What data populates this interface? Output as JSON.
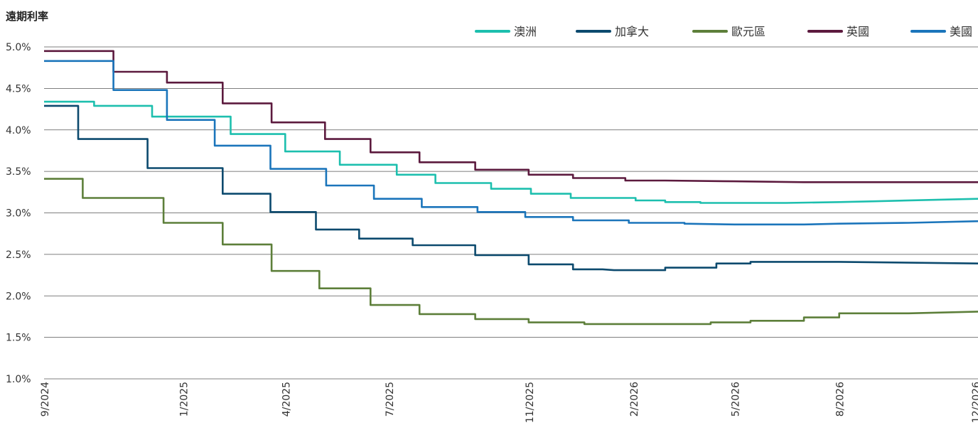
{
  "chart_data": {
    "type": "line",
    "ylabel": "遠期利率",
    "ylim": [
      1.0,
      5.0
    ],
    "yticks": [
      "5.0%",
      "4.5%",
      "4.0%",
      "3.5%",
      "3.0%",
      "2.5%",
      "2.0%",
      "1.5%",
      "1.0%"
    ],
    "xlim": [
      "2024-09",
      "2026-12"
    ],
    "xticks": [
      "9/2024",
      "1/2025",
      "4/2025",
      "7/2025",
      "11/2025",
      "2/2026",
      "5/2026",
      "8/2026",
      "12/2026"
    ],
    "grid": "horizontal",
    "legend_position": "top",
    "series": [
      {
        "name": "澳洲",
        "color": "#1dbfae",
        "points": [
          [
            "2024-09",
            4.34
          ],
          [
            "2024-10-15",
            4.34
          ],
          [
            "2024-10-15",
            4.29
          ],
          [
            "2024-12-05",
            4.29
          ],
          [
            "2024-12-05",
            4.16
          ],
          [
            "2025-02-12",
            4.16
          ],
          [
            "2025-02-12",
            3.95
          ],
          [
            "2025-04-01",
            3.95
          ],
          [
            "2025-04-01",
            3.74
          ],
          [
            "2025-05-19",
            3.74
          ],
          [
            "2025-05-19",
            3.58
          ],
          [
            "2025-07-08",
            3.58
          ],
          [
            "2025-07-08",
            3.46
          ],
          [
            "2025-08-11",
            3.46
          ],
          [
            "2025-08-11",
            3.36
          ],
          [
            "2025-09-29",
            3.36
          ],
          [
            "2025-09-29",
            3.29
          ],
          [
            "2025-11-03",
            3.29
          ],
          [
            "2025-11-03",
            3.23
          ],
          [
            "2025-12-08",
            3.23
          ],
          [
            "2025-12-08",
            3.18
          ],
          [
            "2026-02-03",
            3.18
          ],
          [
            "2026-02-03",
            3.15
          ],
          [
            "2026-03-01",
            3.15
          ],
          [
            "2026-03-01",
            3.13
          ],
          [
            "2026-04-01",
            3.13
          ],
          [
            "2026-04-01",
            3.12
          ],
          [
            "2026-06-15",
            3.12
          ],
          [
            "2026-08-01",
            3.13
          ],
          [
            "2026-09-01",
            3.14
          ],
          [
            "2026-11-01",
            3.16
          ],
          [
            "2026-12",
            3.17
          ]
        ]
      },
      {
        "name": "加拿大",
        "color": "#0c4a6e",
        "points": [
          [
            "2024-09",
            4.29
          ],
          [
            "2024-10-01",
            4.29
          ],
          [
            "2024-10-01",
            3.89
          ],
          [
            "2024-12-01",
            3.89
          ],
          [
            "2024-12-01",
            3.54
          ],
          [
            "2025-02-05",
            3.54
          ],
          [
            "2025-02-05",
            3.23
          ],
          [
            "2025-03-19",
            3.23
          ],
          [
            "2025-03-19",
            3.01
          ],
          [
            "2025-04-28",
            3.01
          ],
          [
            "2025-04-28",
            2.8
          ],
          [
            "2025-06-05",
            2.8
          ],
          [
            "2025-06-05",
            2.69
          ],
          [
            "2025-07-22",
            2.69
          ],
          [
            "2025-07-22",
            2.61
          ],
          [
            "2025-09-15",
            2.61
          ],
          [
            "2025-09-15",
            2.49
          ],
          [
            "2025-11-01",
            2.49
          ],
          [
            "2025-11-01",
            2.38
          ],
          [
            "2025-12-10",
            2.38
          ],
          [
            "2025-12-10",
            2.32
          ],
          [
            "2026-01-05",
            2.32
          ],
          [
            "2026-01-15",
            2.31
          ],
          [
            "2026-03-01",
            2.31
          ],
          [
            "2026-03-01",
            2.34
          ],
          [
            "2026-04-15",
            2.34
          ],
          [
            "2026-04-15",
            2.39
          ],
          [
            "2026-05-15",
            2.39
          ],
          [
            "2026-05-15",
            2.41
          ],
          [
            "2026-08-01",
            2.41
          ],
          [
            "2026-12",
            2.39
          ]
        ]
      },
      {
        "name": "歐元區",
        "color": "#5d7f3a",
        "points": [
          [
            "2024-09",
            3.41
          ],
          [
            "2024-10-05",
            3.41
          ],
          [
            "2024-10-05",
            3.18
          ],
          [
            "2024-12-15",
            3.18
          ],
          [
            "2024-12-15",
            2.88
          ],
          [
            "2025-02-05",
            2.88
          ],
          [
            "2025-02-05",
            2.62
          ],
          [
            "2025-03-20",
            2.62
          ],
          [
            "2025-03-20",
            2.3
          ],
          [
            "2025-05-01",
            2.3
          ],
          [
            "2025-05-01",
            2.09
          ],
          [
            "2025-06-15",
            2.09
          ],
          [
            "2025-06-15",
            1.89
          ],
          [
            "2025-07-28",
            1.89
          ],
          [
            "2025-07-28",
            1.78
          ],
          [
            "2025-09-15",
            1.78
          ],
          [
            "2025-09-15",
            1.72
          ],
          [
            "2025-11-01",
            1.72
          ],
          [
            "2025-11-01",
            1.68
          ],
          [
            "2025-12-20",
            1.68
          ],
          [
            "2025-12-20",
            1.66
          ],
          [
            "2026-03-15",
            1.66
          ],
          [
            "2026-04-10",
            1.66
          ],
          [
            "2026-04-10",
            1.68
          ],
          [
            "2026-05-15",
            1.68
          ],
          [
            "2026-05-15",
            1.7
          ],
          [
            "2026-07-01",
            1.7
          ],
          [
            "2026-07-01",
            1.74
          ],
          [
            "2026-08-01",
            1.74
          ],
          [
            "2026-08-01",
            1.79
          ],
          [
            "2026-10-01",
            1.79
          ],
          [
            "2026-12",
            1.81
          ]
        ]
      },
      {
        "name": "英國",
        "color": "#5c1a3e",
        "points": [
          [
            "2024-09",
            4.95
          ],
          [
            "2024-11-01",
            4.95
          ],
          [
            "2024-11-01",
            4.7
          ],
          [
            "2024-12-18",
            4.7
          ],
          [
            "2024-12-18",
            4.57
          ],
          [
            "2025-02-05",
            4.57
          ],
          [
            "2025-02-05",
            4.32
          ],
          [
            "2025-03-20",
            4.32
          ],
          [
            "2025-03-20",
            4.09
          ],
          [
            "2025-05-06",
            4.09
          ],
          [
            "2025-05-06",
            3.89
          ],
          [
            "2025-06-15",
            3.89
          ],
          [
            "2025-06-15",
            3.73
          ],
          [
            "2025-07-28",
            3.73
          ],
          [
            "2025-07-28",
            3.61
          ],
          [
            "2025-09-15",
            3.61
          ],
          [
            "2025-09-15",
            3.52
          ],
          [
            "2025-11-01",
            3.52
          ],
          [
            "2025-11-01",
            3.46
          ],
          [
            "2025-12-10",
            3.46
          ],
          [
            "2025-12-10",
            3.42
          ],
          [
            "2026-01-25",
            3.42
          ],
          [
            "2026-01-25",
            3.39
          ],
          [
            "2026-03-01",
            3.39
          ],
          [
            "2026-05-01",
            3.38
          ],
          [
            "2026-07-01",
            3.37
          ],
          [
            "2026-12",
            3.37
          ]
        ]
      },
      {
        "name": "美國",
        "color": "#1b75bb",
        "points": [
          [
            "2024-09",
            4.83
          ],
          [
            "2024-11-01",
            4.83
          ],
          [
            "2024-11-01",
            4.48
          ],
          [
            "2024-12-18",
            4.48
          ],
          [
            "2024-12-18",
            4.12
          ],
          [
            "2025-01-29",
            4.12
          ],
          [
            "2025-01-29",
            3.81
          ],
          [
            "2025-03-19",
            3.81
          ],
          [
            "2025-03-19",
            3.53
          ],
          [
            "2025-05-07",
            3.53
          ],
          [
            "2025-05-07",
            3.33
          ],
          [
            "2025-06-18",
            3.33
          ],
          [
            "2025-06-18",
            3.17
          ],
          [
            "2025-07-30",
            3.17
          ],
          [
            "2025-07-30",
            3.07
          ],
          [
            "2025-09-17",
            3.07
          ],
          [
            "2025-09-17",
            3.01
          ],
          [
            "2025-10-29",
            3.01
          ],
          [
            "2025-10-29",
            2.95
          ],
          [
            "2025-12-10",
            2.95
          ],
          [
            "2025-12-10",
            2.91
          ],
          [
            "2026-01-28",
            2.91
          ],
          [
            "2026-01-28",
            2.88
          ],
          [
            "2026-03-18",
            2.88
          ],
          [
            "2026-03-18",
            2.87
          ],
          [
            "2026-05-01",
            2.86
          ],
          [
            "2026-07-01",
            2.86
          ],
          [
            "2026-08-01",
            2.87
          ],
          [
            "2026-10-01",
            2.88
          ],
          [
            "2026-12",
            2.9
          ]
        ]
      }
    ]
  }
}
